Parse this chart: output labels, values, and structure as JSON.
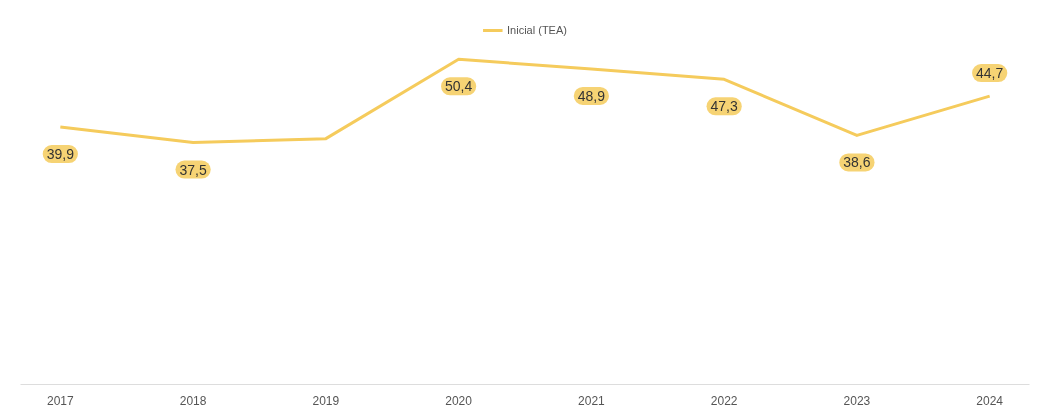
{
  "chart_data": {
    "type": "line",
    "categories": [
      "2017",
      "2018",
      "2019",
      "2020",
      "2021",
      "2022",
      "2023",
      "2024"
    ],
    "series": [
      {
        "name": "Inicial (TEA)",
        "color": "#f5cb5c",
        "values": [
          39.9,
          37.5,
          38.1,
          50.4,
          48.9,
          47.3,
          38.6,
          44.7
        ],
        "value_labels": [
          "39,9",
          "37,5",
          null,
          "50,4",
          "48,9",
          "47,3",
          "38,6",
          "44,7"
        ]
      }
    ],
    "legend": "top",
    "marker": "none",
    "line_style": "solid"
  }
}
